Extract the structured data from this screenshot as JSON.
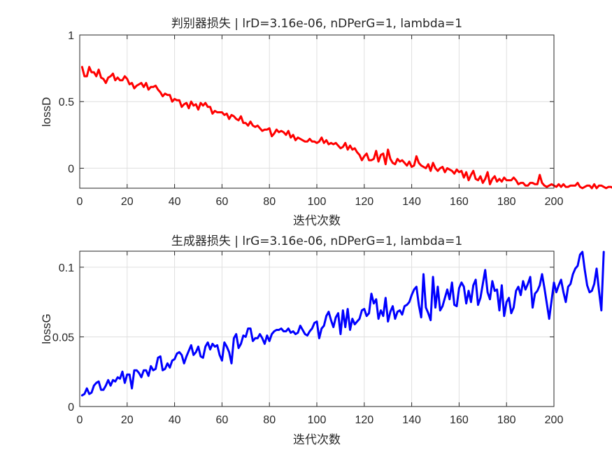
{
  "chart_data": [
    {
      "type": "line",
      "title": "判别器损失 | lrD=3.16e-06, nDPerG=1, lambda=1",
      "xlabel": "迭代次数",
      "ylabel": "lossD",
      "xlim": [
        0,
        200
      ],
      "ylim": [
        -0.15,
        1
      ],
      "xticks": [
        0,
        20,
        40,
        60,
        80,
        100,
        120,
        140,
        160,
        180,
        200
      ],
      "xtick_labels": [
        "0",
        "20",
        "40",
        "60",
        "80",
        "100",
        "120",
        "140",
        "160",
        "180",
        "200"
      ],
      "yticks": [
        0,
        0.5,
        1
      ],
      "ytick_labels": [
        "0",
        "0.5",
        "1"
      ],
      "grid": true,
      "color": "#ff0000",
      "x_start": 1,
      "values": [
        0.76,
        0.69,
        0.69,
        0.76,
        0.72,
        0.72,
        0.69,
        0.74,
        0.68,
        0.67,
        0.64,
        0.68,
        0.69,
        0.71,
        0.66,
        0.68,
        0.66,
        0.66,
        0.69,
        0.67,
        0.63,
        0.64,
        0.6,
        0.62,
        0.63,
        0.64,
        0.61,
        0.64,
        0.59,
        0.61,
        0.61,
        0.62,
        0.59,
        0.57,
        0.54,
        0.56,
        0.55,
        0.55,
        0.5,
        0.52,
        0.51,
        0.51,
        0.46,
        0.48,
        0.49,
        0.45,
        0.5,
        0.47,
        0.48,
        0.44,
        0.49,
        0.47,
        0.49,
        0.46,
        0.46,
        0.41,
        0.43,
        0.42,
        0.42,
        0.42,
        0.4,
        0.41,
        0.37,
        0.4,
        0.39,
        0.37,
        0.36,
        0.39,
        0.34,
        0.34,
        0.32,
        0.35,
        0.32,
        0.31,
        0.32,
        0.3,
        0.28,
        0.29,
        0.29,
        0.3,
        0.24,
        0.26,
        0.29,
        0.27,
        0.28,
        0.27,
        0.25,
        0.28,
        0.23,
        0.25,
        0.21,
        0.23,
        0.22,
        0.21,
        0.2,
        0.2,
        0.22,
        0.2,
        0.2,
        0.19,
        0.2,
        0.23,
        0.19,
        0.21,
        0.18,
        0.19,
        0.18,
        0.19,
        0.17,
        0.15,
        0.16,
        0.19,
        0.14,
        0.17,
        0.14,
        0.15,
        0.12,
        0.1,
        0.06,
        0.09,
        0.11,
        0.06,
        0.06,
        0.07,
        0.13,
        0.05,
        0.1,
        0.11,
        0.03,
        0.14,
        0.07,
        0.04,
        0.03,
        0.07,
        0.05,
        0.06,
        0.04,
        0.02,
        0.05,
        0.01,
        0.02,
        0.09,
        0.04,
        0.02,
        0.01,
        0.0,
        0.03,
        -0.02,
        0.04,
        0.0,
        -0.02,
        0.0,
        0.01,
        -0.03,
        0.0,
        -0.01,
        -0.02,
        -0.04,
        -0.01,
        -0.03,
        -0.02,
        -0.07,
        -0.03,
        -0.09,
        -0.05,
        -0.02,
        -0.08,
        -0.09,
        -0.06,
        -0.11,
        -0.08,
        -0.03,
        -0.12,
        -0.08,
        -0.06,
        -0.1,
        -0.08,
        -0.1,
        -0.07,
        -0.09,
        -0.09,
        -0.09,
        -0.07,
        -0.09,
        -0.12,
        -0.11,
        -0.11,
        -0.13,
        -0.13,
        -0.11,
        -0.11,
        -0.12,
        -0.12,
        -0.05,
        -0.11,
        -0.13,
        -0.14,
        -0.13,
        -0.12,
        -0.13,
        -0.14,
        -0.12,
        -0.14,
        -0.12,
        -0.14,
        -0.14,
        -0.13,
        -0.13,
        -0.13,
        -0.11,
        -0.14,
        -0.15,
        -0.14,
        -0.13,
        -0.13,
        -0.15,
        -0.12,
        -0.15,
        -0.13,
        -0.13,
        -0.14,
        -0.15,
        -0.14,
        -0.14,
        -0.15,
        -0.15
      ]
    },
    {
      "type": "line",
      "title": "生成器损失 | lrG=3.16e-06, nDPerG=1, lambda=1",
      "xlabel": "迭代次数",
      "ylabel": "lossG",
      "xlim": [
        0,
        200
      ],
      "ylim": [
        0,
        0.1115
      ],
      "xticks": [
        0,
        20,
        40,
        60,
        80,
        100,
        120,
        140,
        160,
        180,
        200
      ],
      "xtick_labels": [
        "0",
        "20",
        "40",
        "60",
        "80",
        "100",
        "120",
        "140",
        "160",
        "180",
        "200"
      ],
      "yticks": [
        0,
        0.05,
        0.1
      ],
      "ytick_labels": [
        "0",
        "0.05",
        "0.1"
      ],
      "grid": true,
      "color": "#0000ff",
      "x_start": 1,
      "values": [
        0.008,
        0.009,
        0.013,
        0.009,
        0.01,
        0.015,
        0.017,
        0.018,
        0.012,
        0.012,
        0.015,
        0.019,
        0.015,
        0.019,
        0.018,
        0.021,
        0.02,
        0.025,
        0.017,
        0.023,
        0.023,
        0.013,
        0.026,
        0.026,
        0.024,
        0.021,
        0.026,
        0.026,
        0.022,
        0.029,
        0.026,
        0.027,
        0.035,
        0.036,
        0.026,
        0.027,
        0.031,
        0.028,
        0.033,
        0.034,
        0.038,
        0.039,
        0.037,
        0.031,
        0.036,
        0.04,
        0.044,
        0.037,
        0.039,
        0.043,
        0.036,
        0.035,
        0.043,
        0.046,
        0.041,
        0.045,
        0.043,
        0.044,
        0.037,
        0.033,
        0.046,
        0.043,
        0.039,
        0.031,
        0.049,
        0.052,
        0.042,
        0.045,
        0.051,
        0.05,
        0.056,
        0.056,
        0.047,
        0.049,
        0.049,
        0.052,
        0.049,
        0.045,
        0.051,
        0.047,
        0.052,
        0.054,
        0.055,
        0.055,
        0.056,
        0.054,
        0.054,
        0.056,
        0.053,
        0.054,
        0.052,
        0.053,
        0.058,
        0.055,
        0.052,
        0.051,
        0.054,
        0.056,
        0.06,
        0.061,
        0.049,
        0.056,
        0.058,
        0.065,
        0.068,
        0.062,
        0.057,
        0.064,
        0.067,
        0.052,
        0.069,
        0.057,
        0.07,
        0.055,
        0.063,
        0.059,
        0.061,
        0.063,
        0.069,
        0.07,
        0.065,
        0.067,
        0.081,
        0.074,
        0.077,
        0.063,
        0.069,
        0.065,
        0.078,
        0.061,
        0.068,
        0.072,
        0.063,
        0.068,
        0.069,
        0.066,
        0.072,
        0.073,
        0.075,
        0.08,
        0.084,
        0.086,
        0.073,
        0.064,
        0.095,
        0.071,
        0.067,
        0.062,
        0.093,
        0.071,
        0.086,
        0.069,
        0.072,
        0.078,
        0.084,
        0.077,
        0.089,
        0.073,
        0.072,
        0.085,
        0.089,
        0.086,
        0.074,
        0.083,
        0.075,
        0.087,
        0.091,
        0.073,
        0.078,
        0.088,
        0.098,
        0.082,
        0.077,
        0.09,
        0.083,
        0.084,
        0.069,
        0.087,
        0.065,
        0.075,
        0.078,
        0.067,
        0.071,
        0.083,
        0.086,
        0.08,
        0.09,
        0.084,
        0.088,
        0.093,
        0.071,
        0.081,
        0.083,
        0.087,
        0.095,
        0.085,
        0.074,
        0.063,
        0.076,
        0.089,
        0.082,
        0.087,
        0.091,
        0.082,
        0.075,
        0.086,
        0.088,
        0.095,
        0.099,
        0.101,
        0.109,
        0.111,
        0.098,
        0.087,
        0.082,
        0.083,
        0.088,
        0.099,
        0.083,
        0.069,
        0.111
      ]
    }
  ]
}
